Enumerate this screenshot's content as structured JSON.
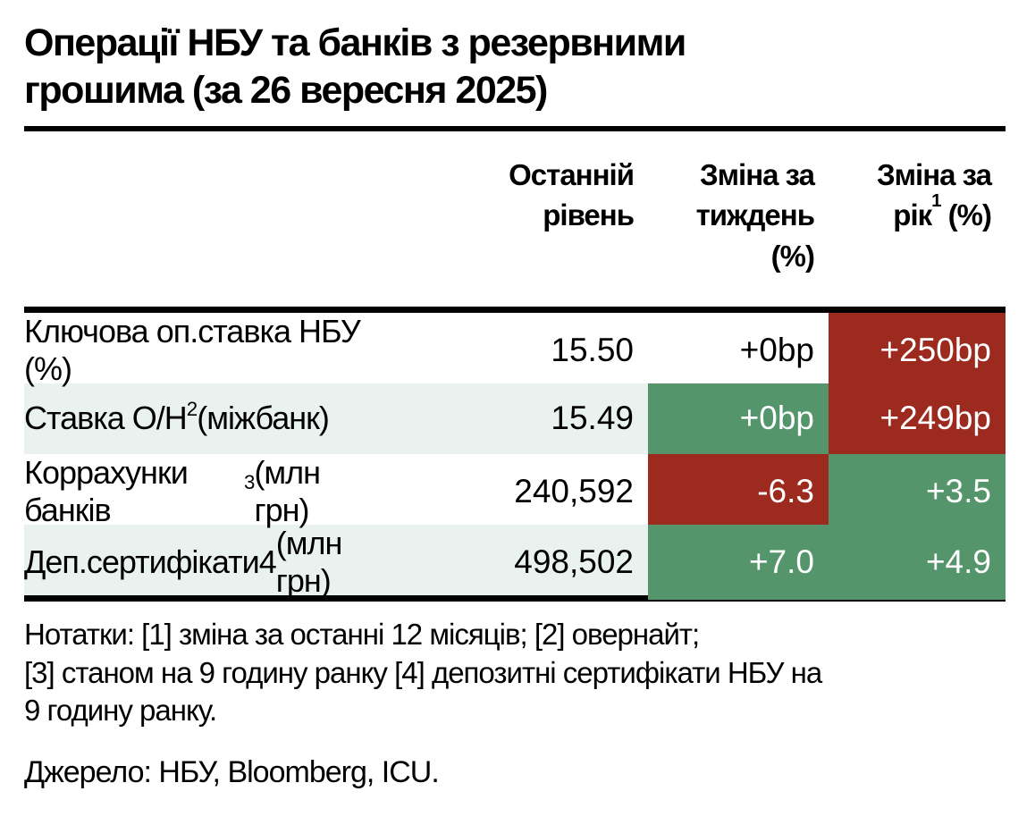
{
  "title": {
    "line1": "Операції НБУ та банків з резервними",
    "line2": "грошима (за 26 вересня 2025)"
  },
  "colors": {
    "negative_red": "#9c2a1f",
    "positive_green": "#54956c",
    "row_stripe": "#e9f2ef",
    "rule_black": "#000000"
  },
  "table": {
    "header": {
      "level": {
        "line1": "Останній",
        "line2": "рівень"
      },
      "week": {
        "line1": "Зміна за",
        "line2": "тиждень",
        "line3": "(%)"
      },
      "year": {
        "line1": "Зміна за",
        "line2_pre": "рік",
        "sup": "1",
        "line2_post": " (%)"
      }
    },
    "rows": [
      {
        "label": "Ключова оп.ставка НБУ (%)",
        "sup": "",
        "suffix": "",
        "level": "15.50",
        "week": {
          "text": "+0bp",
          "bg": "none"
        },
        "year": {
          "text": "+250bp",
          "bg": "red"
        },
        "row_bg": "white"
      },
      {
        "label": "Ставка О/Н",
        "sup": "2",
        "suffix": " (міжбанк)",
        "level": "15.49",
        "week": {
          "text": "+0bp",
          "bg": "green"
        },
        "year": {
          "text": "+249bp",
          "bg": "red"
        },
        "row_bg": "stripe"
      },
      {
        "label": "Коррахунки банків",
        "sup": "3",
        "suffix": " (млн грн)",
        "level": "240,592",
        "week": {
          "text": "-6.3",
          "bg": "red"
        },
        "year": {
          "text": "+3.5",
          "bg": "green"
        },
        "row_bg": "white"
      },
      {
        "label": "Деп.сертифікати4",
        "sup": "",
        "suffix": " (млн грн)",
        "level": "498,502",
        "week": {
          "text": "+7.0",
          "bg": "green"
        },
        "year": {
          "text": "+4.9",
          "bg": "green"
        },
        "row_bg": "stripe"
      }
    ]
  },
  "notes": {
    "lines": [
      "Нотатки: [1] зміна за останні 12 місяців; [2] овернайт;",
      "[3] станом на 9 годину ранку [4] депозитні сертифікати НБУ на",
      "9 годину ранку."
    ],
    "source": "Джерело: НБУ, Bloomberg, ICU."
  }
}
